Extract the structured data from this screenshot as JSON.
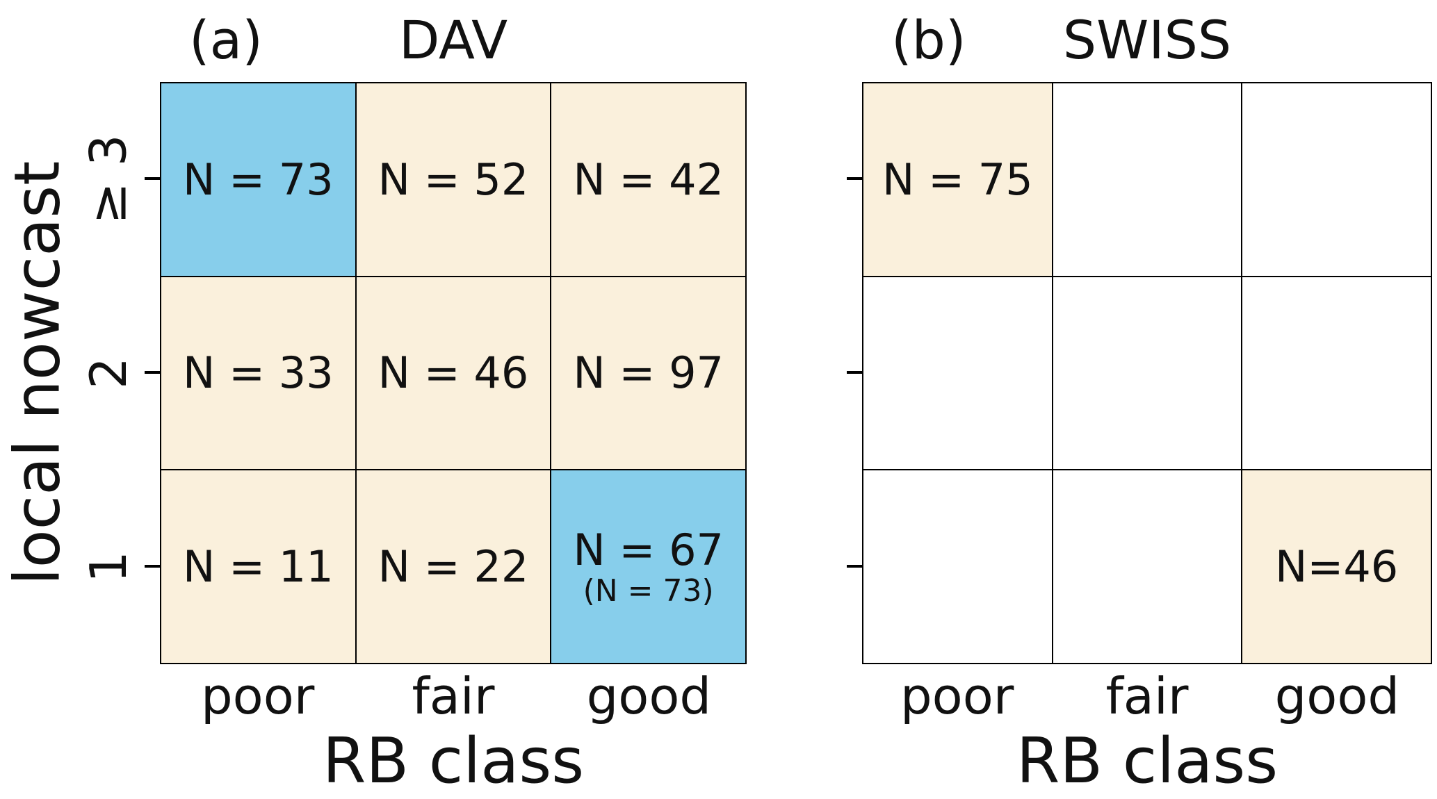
{
  "figure": {
    "colors": {
      "highlight_blue": "#87CEEB",
      "cell_cream": "#FAF0DC",
      "cell_white": "#FFFFFF",
      "grid_line": "#000000",
      "text": "#111111",
      "background": "#FFFFFF"
    },
    "panels": [
      {
        "tag": "(a)",
        "title": "DAV",
        "ylabel": "local nowcast",
        "xlabel": "RB class",
        "row_labels": [
          "≥ 3",
          "2",
          "1"
        ],
        "col_labels": [
          "poor",
          "fair",
          "good"
        ],
        "cells": [
          {
            "text": "N = 73",
            "sub": "",
            "bg": "#87CEEB"
          },
          {
            "text": "N = 52",
            "sub": "",
            "bg": "#FAF0DC"
          },
          {
            "text": "N = 42",
            "sub": "",
            "bg": "#FAF0DC"
          },
          {
            "text": "N = 33",
            "sub": "",
            "bg": "#FAF0DC"
          },
          {
            "text": "N = 46",
            "sub": "",
            "bg": "#FAF0DC"
          },
          {
            "text": "N = 97",
            "sub": "",
            "bg": "#FAF0DC"
          },
          {
            "text": "N = 11",
            "sub": "",
            "bg": "#FAF0DC"
          },
          {
            "text": "N = 22",
            "sub": "",
            "bg": "#FAF0DC"
          },
          {
            "text": "N = 67",
            "sub": "(N = 73)",
            "bg": "#87CEEB"
          }
        ]
      },
      {
        "tag": "(b)",
        "title": "SWISS",
        "ylabel": "",
        "xlabel": "RB class",
        "row_labels": [
          "",
          "",
          ""
        ],
        "col_labels": [
          "poor",
          "fair",
          "good"
        ],
        "cells": [
          {
            "text": "N = 75",
            "sub": "",
            "bg": "#FAF0DC"
          },
          {
            "text": "",
            "sub": "",
            "bg": "#FFFFFF"
          },
          {
            "text": "",
            "sub": "",
            "bg": "#FFFFFF"
          },
          {
            "text": "",
            "sub": "",
            "bg": "#FFFFFF"
          },
          {
            "text": "",
            "sub": "",
            "bg": "#FFFFFF"
          },
          {
            "text": "",
            "sub": "",
            "bg": "#FFFFFF"
          },
          {
            "text": "",
            "sub": "",
            "bg": "#FFFFFF"
          },
          {
            "text": "",
            "sub": "",
            "bg": "#FFFFFF"
          },
          {
            "text": "N=46",
            "sub": "",
            "bg": "#FAF0DC"
          }
        ]
      }
    ]
  },
  "chart_data": [
    {
      "type": "heatmap",
      "title": "(a) DAV",
      "xlabel": "RB class",
      "ylabel": "local nowcast",
      "x_categories": [
        "poor",
        "fair",
        "good"
      ],
      "y_categories_top_to_bottom": [
        "≥ 3",
        "2",
        "1"
      ],
      "counts_rows_top_to_bottom": [
        [
          73,
          52,
          42
        ],
        [
          33,
          46,
          97
        ],
        [
          11,
          22,
          67
        ]
      ],
      "annotations": [
        {
          "row": "1",
          "col": "good",
          "text": "N = 67 (N = 73)"
        }
      ],
      "highlighted_cells_blue": [
        {
          "row": "≥ 3",
          "col": "poor"
        },
        {
          "row": "1",
          "col": "good"
        }
      ],
      "cell_fill_note": "all other labeled cells cream",
      "grid": "on",
      "legend": "none"
    },
    {
      "type": "heatmap",
      "title": "(b) SWISS",
      "xlabel": "RB class",
      "ylabel": "",
      "x_categories": [
        "poor",
        "fair",
        "good"
      ],
      "y_categories_top_to_bottom": [
        "",
        "",
        ""
      ],
      "counts_rows_top_to_bottom": [
        [
          75,
          null,
          null
        ],
        [
          null,
          null,
          null
        ],
        [
          null,
          null,
          46
        ]
      ],
      "annotations": [],
      "highlighted_cells_blue": [],
      "cell_fill_note": "labeled cells cream, others white",
      "grid": "on",
      "legend": "none"
    }
  ]
}
